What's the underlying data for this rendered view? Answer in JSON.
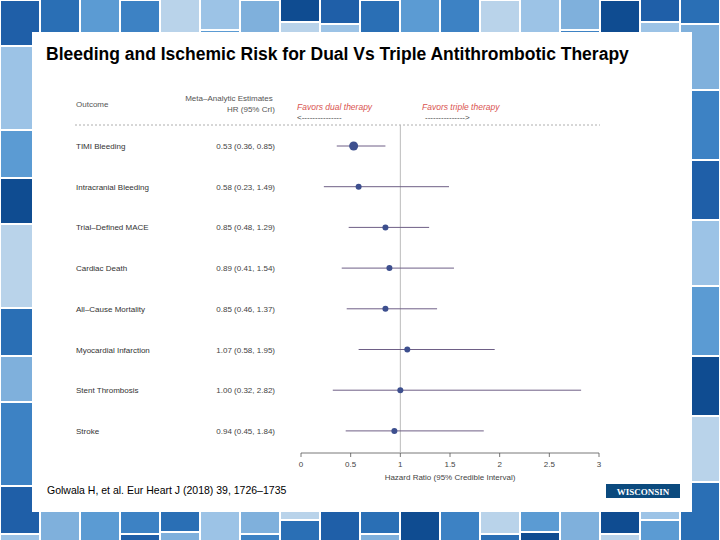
{
  "chart_data": {
    "type": "forest",
    "title": "Bleeding and Ischemic Risk for Dual Vs Triple Antithrombotic Therapy",
    "outcome_header": "Outcome",
    "estimate_header": "Meta–Analytic Estimates",
    "estimate_subheader": "HR (95% CrI)",
    "favors_left": "Favors dual therapy",
    "favors_left_arrow": "<---------------",
    "favors_right": "Favors triple therapy",
    "favors_right_arrow": "--------------->",
    "x_label": "Hazard Ratio (95% Credible Interval)",
    "categories": [
      "TIMI Bleeding",
      "Intracranial Bleeding",
      "Trial–Defined MACE",
      "Cardiac Death",
      "All–Cause Mortality",
      "Myocardial Infarction",
      "Stent Thrombosis",
      "Stroke"
    ],
    "values": [
      0.53,
      0.58,
      0.85,
      0.89,
      0.85,
      1.07,
      1.0,
      0.94
    ],
    "ci_low": [
      0.36,
      0.23,
      0.48,
      0.41,
      0.46,
      0.58,
      0.32,
      0.45
    ],
    "ci_high": [
      0.85,
      1.49,
      1.29,
      1.54,
      1.37,
      1.95,
      2.82,
      1.84
    ],
    "value_labels": [
      "0.53 (0.36, 0.85)",
      "0.58 (0.23, 1.49)",
      "0.85 (0.48, 1.29)",
      "0.89 (0.41, 1.54)",
      "0.85 (0.46, 1.37)",
      "1.07 (0.58, 1.95)",
      "1.00 (0.32, 2.82)",
      "0.94 (0.45, 1.84)"
    ],
    "reference_line": 1,
    "xlim": [
      0,
      3
    ],
    "xticks": [
      0,
      0.5,
      1,
      1.5,
      2,
      2.5,
      3
    ],
    "color": "#3d4f8e",
    "source": "Golwala H, et al. Eur Heart J (2018) 39, 1726–1735",
    "logo": "WISCONSIN"
  }
}
